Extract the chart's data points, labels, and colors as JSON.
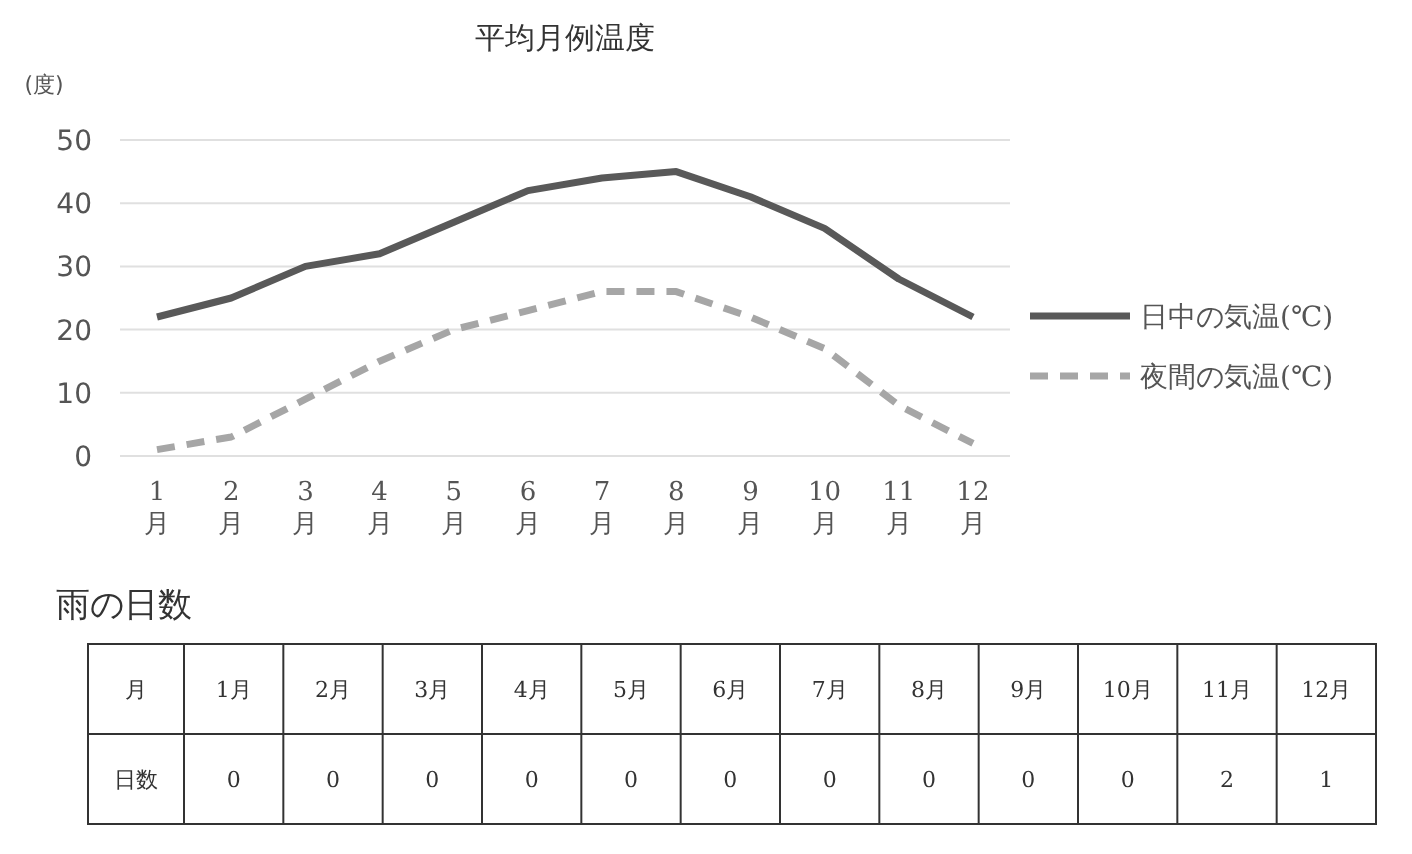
{
  "chart_data": [
    {
      "type": "line",
      "title": "平均月例温度",
      "ylabel": "(度)",
      "categories": [
        "1月",
        "2月",
        "3月",
        "4月",
        "5月",
        "6月",
        "7月",
        "8月",
        "9月",
        "10月",
        "11月",
        "12月"
      ],
      "series": [
        {
          "name": "日中の気温(℃)",
          "color": "#595959",
          "line_style": "solid",
          "values": [
            22,
            25,
            30,
            32,
            37,
            42,
            44,
            45,
            41,
            36,
            28,
            22
          ]
        },
        {
          "name": "夜間の気温(℃)",
          "color": "#a6a6a6",
          "line_style": "dashed",
          "values": [
            1,
            3,
            9,
            15,
            20,
            23,
            26,
            26,
            22,
            17,
            8,
            2
          ]
        }
      ],
      "ylim": [
        0,
        50
      ],
      "yticks": [
        0,
        10,
        20,
        30,
        40,
        50
      ],
      "grid": "y",
      "legend": "right",
      "marker": "none"
    },
    {
      "type": "heatmap",
      "title": "雨の日数",
      "xlabel": "月",
      "categories": [
        "1月",
        "2月",
        "3月",
        "4月",
        "5月",
        "6月",
        "7月",
        "8月",
        "9月",
        "10月",
        "11月",
        "12月"
      ],
      "y_categories": [
        "日数"
      ],
      "cells": [
        [
          0,
          0,
          0,
          0,
          0,
          0,
          0,
          0,
          0,
          0,
          2,
          1
        ]
      ],
      "data_labels": true
    }
  ]
}
